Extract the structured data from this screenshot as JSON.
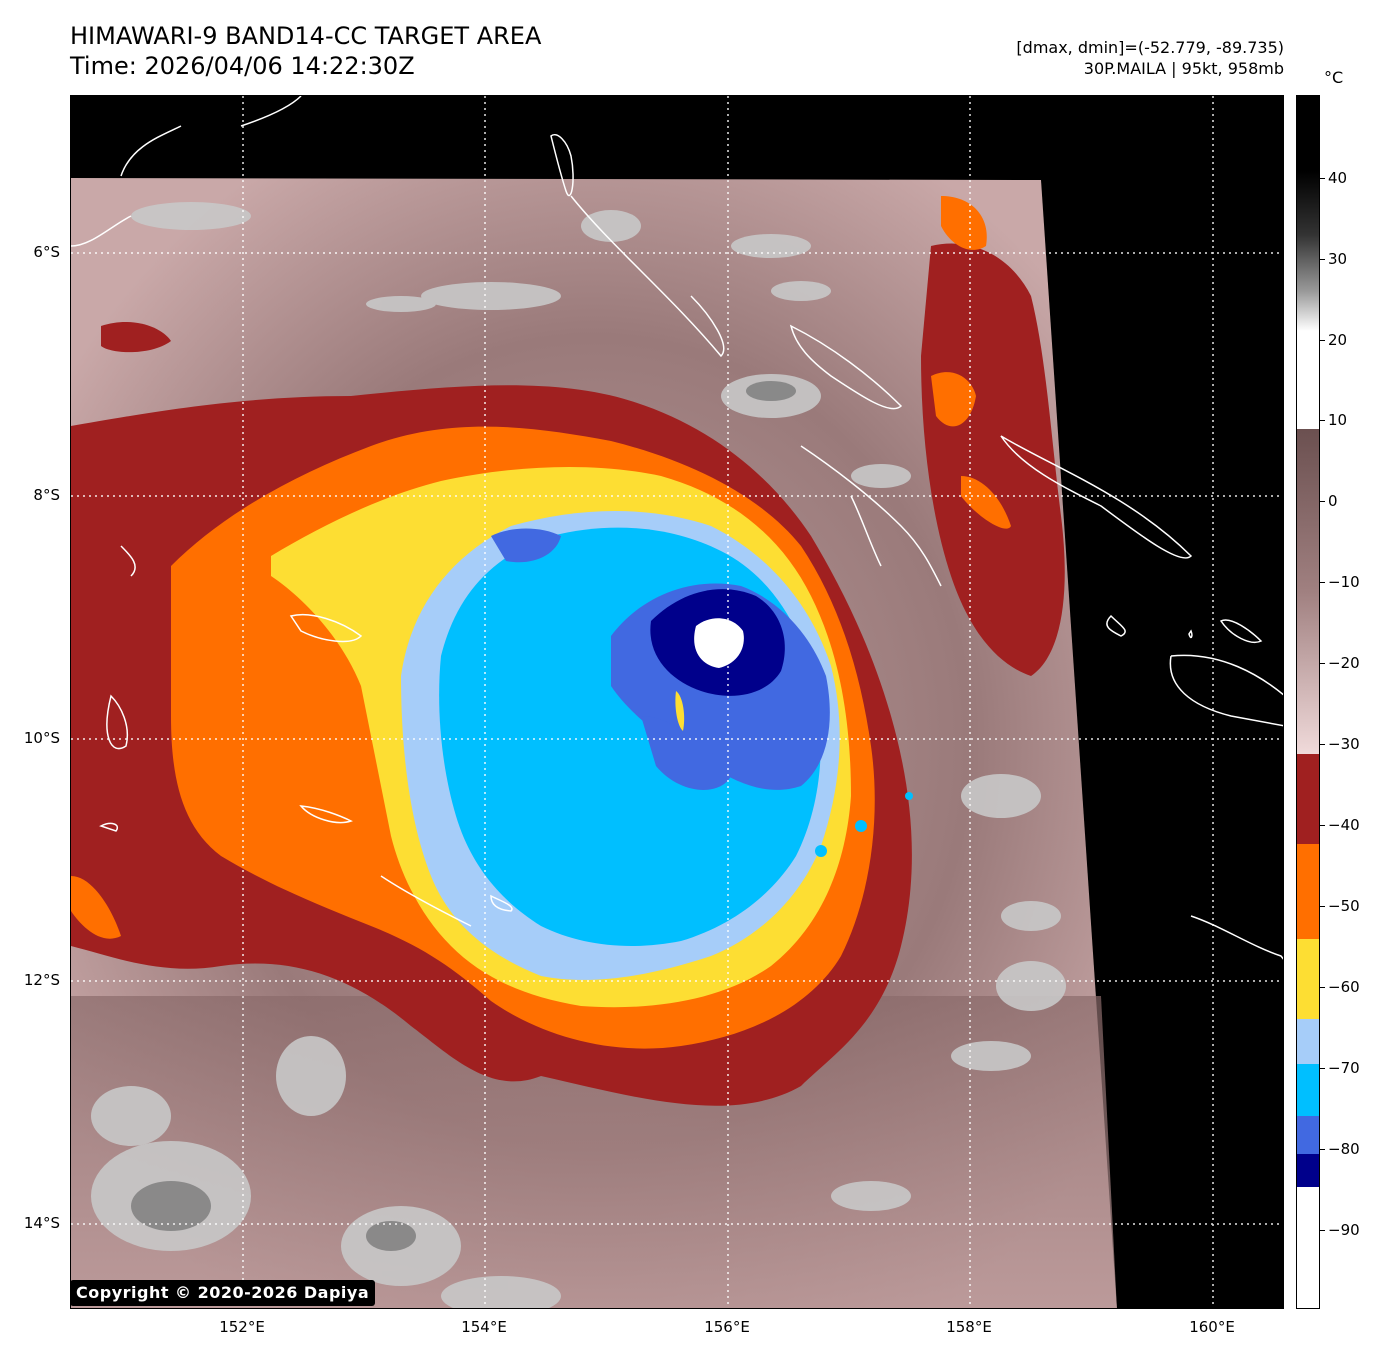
{
  "header": {
    "title": "HIMAWARI-9 BAND14-CC TARGET AREA",
    "time": "Time: 2026/04/06 14:22:30Z",
    "dminmax": "[dmax, dmin]=(-52.779, -89.735)",
    "storm": "30P.MAILA | 95kt, 958mb"
  },
  "map": {
    "lat_labels": [
      "6°S",
      "8°S",
      "10°S",
      "12°S",
      "14°S"
    ],
    "lon_labels": [
      "152°E",
      "154°E",
      "156°E",
      "158°E",
      "160°E"
    ],
    "copyright": "Copyright © 2020-2026 Dapiya"
  },
  "colorbar": {
    "unit": "°C",
    "ticks": [
      "40",
      "30",
      "20",
      "10",
      "0",
      "−10",
      "−20",
      "−30",
      "−40",
      "−50",
      "−60",
      "−70",
      "−80",
      "−90"
    ],
    "colors": {
      "red": "#a02020",
      "orange": "#ff6f00",
      "yellow": "#fdde33",
      "light_blue": "#a6cdf9",
      "cyan": "#00bfff",
      "royal_blue": "#4169e1",
      "navy": "#00008b"
    }
  }
}
